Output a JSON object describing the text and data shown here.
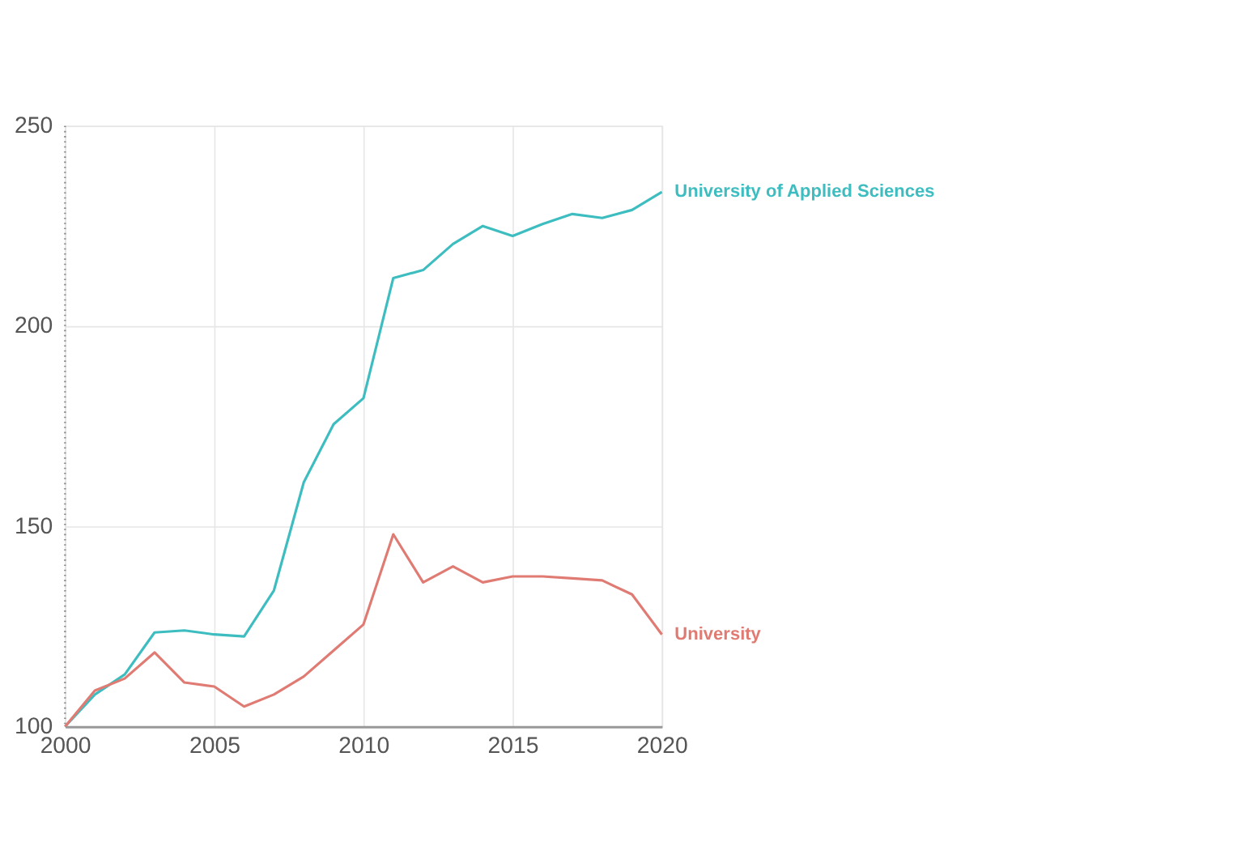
{
  "chart_data": {
    "type": "line",
    "x": [
      2000,
      2001,
      2002,
      2003,
      2004,
      2005,
      2006,
      2007,
      2008,
      2009,
      2010,
      2011,
      2012,
      2013,
      2014,
      2015,
      2016,
      2017,
      2018,
      2019,
      2020
    ],
    "series": [
      {
        "name": "University of Applied Sciences",
        "color": "#3dbdc0",
        "values": [
          100,
          108,
          113,
          123.5,
          124,
          123,
          122.5,
          134,
          161,
          175.5,
          182,
          212,
          214,
          220.5,
          225,
          222.5,
          225.5,
          228,
          227,
          229,
          233.5
        ]
      },
      {
        "name": "University",
        "color": "#e07b74",
        "values": [
          100,
          109,
          112,
          118.5,
          111,
          110,
          105,
          108,
          112.5,
          119,
          125.5,
          148,
          136,
          140,
          136,
          137.5,
          137.5,
          137,
          136.5,
          133,
          123
        ]
      }
    ],
    "xlim": [
      2000,
      2020
    ],
    "xticks": [
      2000,
      2005,
      2010,
      2015,
      2020
    ],
    "ylim": [
      100,
      250
    ],
    "yticks": [
      100,
      150,
      200,
      250
    ],
    "grid": true,
    "marker": "none",
    "line_style": "solid",
    "ref_lines": [
      {
        "axis": "x",
        "value": 2000,
        "color": "#888888",
        "line_style": "dotted"
      }
    ]
  }
}
